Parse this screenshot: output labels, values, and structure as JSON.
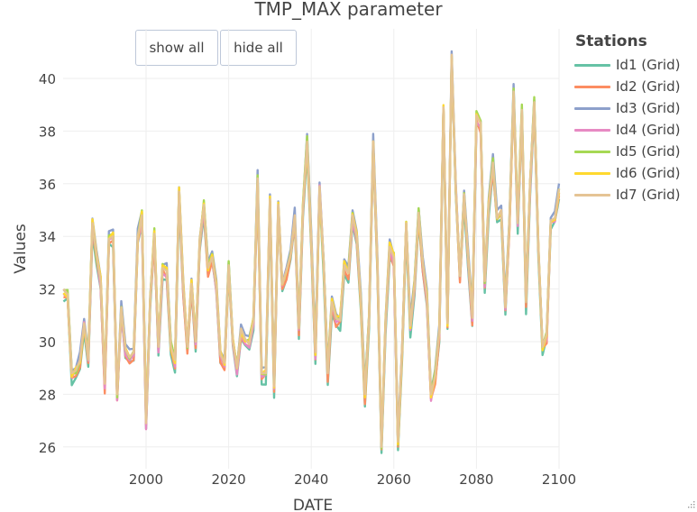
{
  "header": {
    "title": "TMP_MAX parameter"
  },
  "buttons": {
    "show_all": "show all",
    "hide_all": "hide all"
  },
  "legend": {
    "title": "Stations",
    "items": [
      {
        "label": "Id1 (Grid)",
        "color": "#66c2a5"
      },
      {
        "label": "Id2 (Grid)",
        "color": "#fc8d62"
      },
      {
        "label": "Id3 (Grid)",
        "color": "#8da0cb"
      },
      {
        "label": "Id4 (Grid)",
        "color": "#e78ac3"
      },
      {
        "label": "Id5 (Grid)",
        "color": "#a6d854"
      },
      {
        "label": "Id6 (Grid)",
        "color": "#ffd92f"
      },
      {
        "label": "Id7 (Grid)",
        "color": "#e5c494"
      }
    ]
  },
  "axes": {
    "x": {
      "label": "DATE",
      "ticks": [
        "2000",
        "2020",
        "2040",
        "2060",
        "2080",
        "2100"
      ]
    },
    "y": {
      "label": "Values",
      "ticks": [
        "26",
        "28",
        "30",
        "32",
        "34",
        "36",
        "38",
        "40"
      ]
    }
  },
  "chart_data": {
    "type": "line",
    "title": "TMP_MAX parameter",
    "xlabel": "DATE",
    "ylabel": "Values",
    "xlim": [
      1980,
      2100
    ],
    "ylim": [
      25.3,
      41.7
    ],
    "grid": true,
    "legend_position": "right",
    "legend_title": "Stations",
    "x_start": 1980,
    "x_step": 1,
    "series_base_name": "Id7 (Grid)",
    "base_values": [
      32.0,
      31.8,
      28.8,
      28.9,
      29.3,
      30.7,
      29.3,
      34.5,
      33.3,
      32.3,
      28.4,
      33.9,
      34.0,
      28.0,
      31.3,
      29.7,
      29.4,
      29.6,
      34.0,
      34.8,
      26.9,
      31.6,
      34.1,
      29.8,
      32.8,
      32.7,
      29.8,
      29.3,
      35.7,
      32.1,
      29.8,
      32.2,
      30.0,
      33.8,
      35.2,
      32.8,
      33.2,
      32.1,
      29.5,
      29.2,
      32.9,
      30.0,
      29.0,
      30.5,
      30.1,
      29.9,
      30.8,
      36.2,
      28.8,
      28.8,
      35.4,
      28.3,
      35.2,
      32.2,
      32.7,
      33.3,
      34.8,
      30.5,
      35.1,
      37.6,
      33.9,
      29.6,
      35.9,
      33.0,
      28.8,
      31.5,
      30.9,
      30.8,
      32.9,
      32.6,
      34.8,
      34.0,
      31.6,
      28.0,
      30.9,
      37.6,
      33.1,
      26.0,
      30.7,
      33.6,
      33.2,
      26.2,
      29.8,
      34.5,
      30.6,
      32.1,
      34.9,
      33.0,
      31.7,
      28.0,
      28.7,
      30.4,
      38.9,
      30.7,
      40.9,
      35.8,
      32.5,
      35.6,
      33.2,
      30.9,
      38.6,
      38.3,
      32.3,
      35.2,
      36.8,
      34.7,
      35.0,
      31.3,
      34.6,
      39.5,
      34.5,
      38.8,
      31.5,
      36.0,
      39.1,
      33.5,
      29.8,
      30.3,
      34.6,
      34.7,
      35.8
    ],
    "station_offsets": {
      "Id1 (Grid)": -0.3,
      "Id2 (Grid)": -0.2,
      "Id3 (Grid)": 0.15,
      "Id4 (Grid)": -0.1,
      "Id5 (Grid)": 0.05,
      "Id6 (Grid)": 0.0,
      "Id7 (Grid)": 0.0
    },
    "series_summary": [
      {
        "name": "Id1 (Grid)",
        "color": "#66c2a5",
        "min": 26.0,
        "max": 40.3
      },
      {
        "name": "Id2 (Grid)",
        "color": "#fc8d62",
        "min": 26.0,
        "max": 40.6
      },
      {
        "name": "Id3 (Grid)",
        "color": "#8da0cb",
        "min": 26.1,
        "max": 40.9
      },
      {
        "name": "Id4 (Grid)",
        "color": "#e78ac3",
        "min": 26.0,
        "max": 40.7
      },
      {
        "name": "Id5 (Grid)",
        "color": "#a6d854",
        "min": 26.3,
        "max": 40.9
      },
      {
        "name": "Id6 (Grid)",
        "color": "#ffd92f",
        "min": 26.1,
        "max": 40.9
      },
      {
        "name": "Id7 (Grid)",
        "color": "#e5c494",
        "min": 26.0,
        "max": 40.9
      }
    ]
  }
}
